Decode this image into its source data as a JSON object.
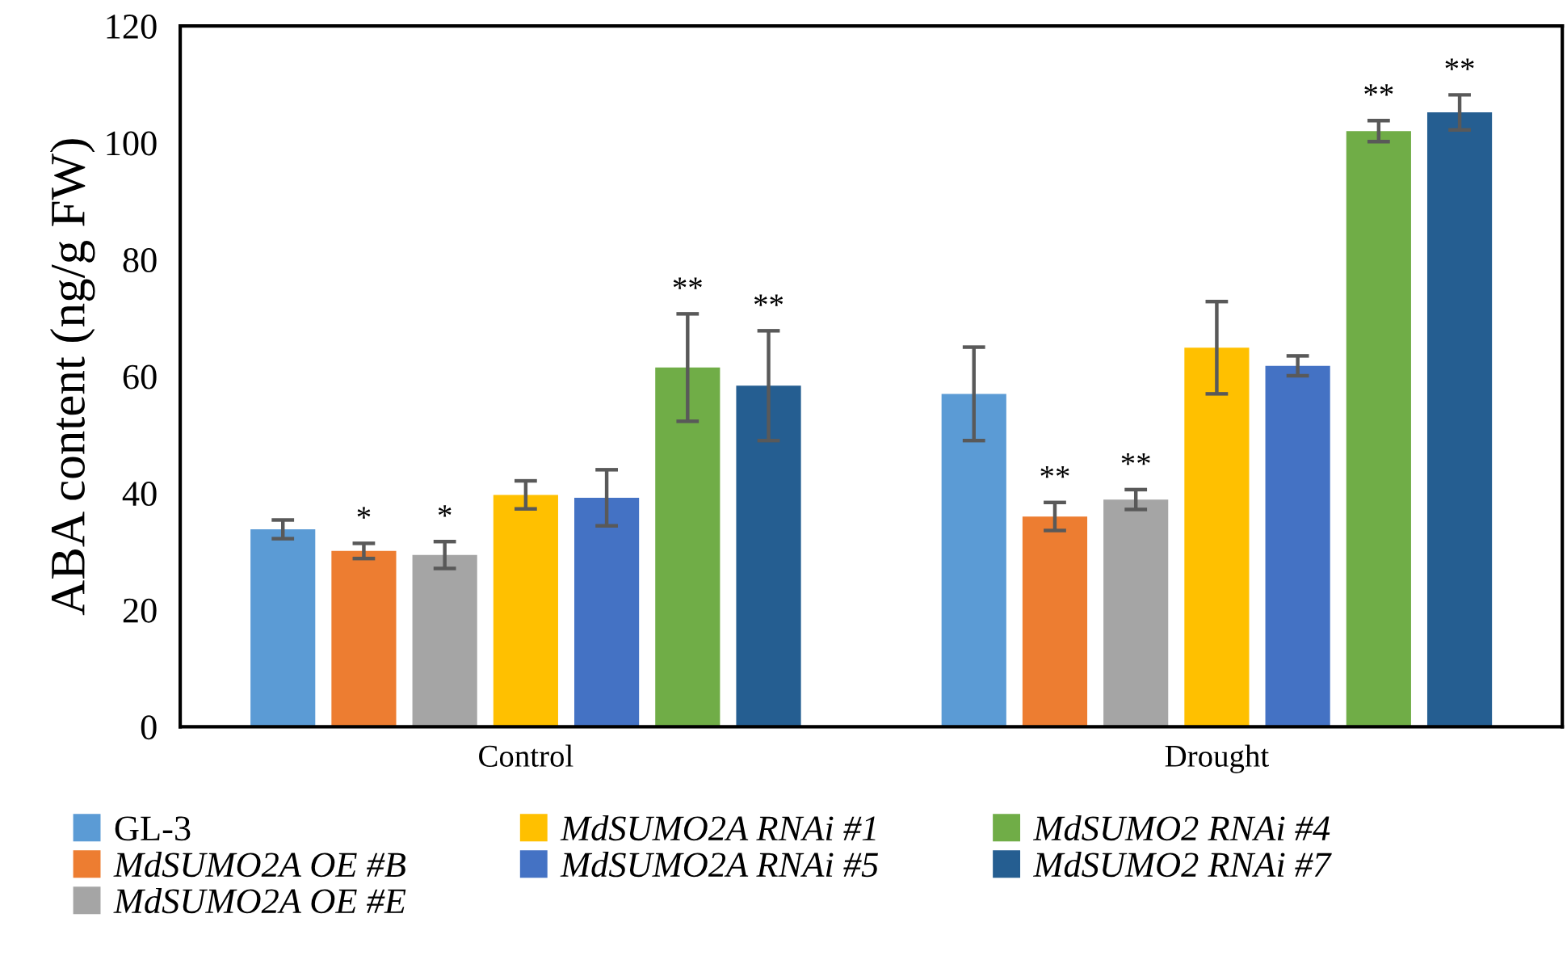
{
  "chart_data": {
    "type": "bar",
    "ylabel": "ABA content (ng/g FW)",
    "categories": [
      "Control",
      "Drought"
    ],
    "series": [
      {
        "name": "GL-3",
        "color": "#5b9bd5",
        "values": [
          33.8,
          57.0
        ],
        "errors": [
          1.6,
          8.0
        ],
        "value_labels": [
          null,
          null
        ]
      },
      {
        "name": "MdSUMO2A OE #B",
        "color": "#ed7d31",
        "values": [
          30.1,
          36.0
        ],
        "errors": [
          1.3,
          2.4
        ],
        "value_labels": [
          "*",
          "**"
        ]
      },
      {
        "name": "MdSUMO2A OE #E",
        "color": "#a5a5a5",
        "values": [
          29.4,
          38.9
        ],
        "errors": [
          2.3,
          1.7
        ],
        "value_labels": [
          "*",
          "**"
        ]
      },
      {
        "name": "MdSUMO2A RNAi #1",
        "color": "#ffc000",
        "values": [
          39.7,
          64.9
        ],
        "errors": [
          2.4,
          7.9
        ],
        "value_labels": [
          null,
          null
        ]
      },
      {
        "name": "MdSUMO2A RNAi #5",
        "color": "#4472c4",
        "values": [
          39.2,
          61.8
        ],
        "errors": [
          4.8,
          1.7
        ],
        "value_labels": [
          null,
          null
        ]
      },
      {
        "name": "MdSUMO2 RNAi #4",
        "color": "#70ad47",
        "values": [
          61.5,
          102.0
        ],
        "errors": [
          9.2,
          1.8
        ],
        "value_labels": [
          "**",
          "**"
        ]
      },
      {
        "name": "MdSUMO2 RNAi #7",
        "color": "#255e91",
        "values": [
          58.4,
          105.2
        ],
        "errors": [
          9.4,
          3.0
        ],
        "value_labels": [
          "**",
          "**"
        ]
      }
    ],
    "ylim": [
      0,
      120
    ],
    "yticks": [
      0,
      20,
      40,
      60,
      80,
      100,
      120
    ],
    "grid": false,
    "legend": "bottom"
  }
}
